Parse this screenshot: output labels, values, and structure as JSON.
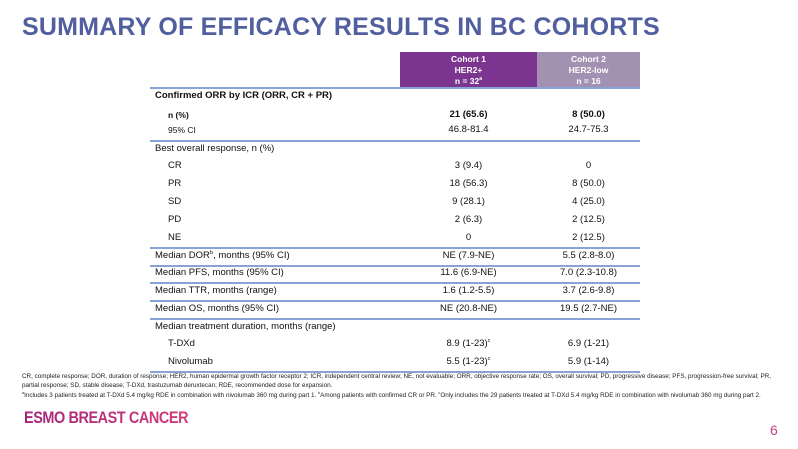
{
  "title": "SUMMARY OF EFFICACY RESULTS IN BC COHORTS",
  "header": {
    "cohort1": [
      "Cohort 1",
      "HER2+",
      "n = 32"
    ],
    "cohort1_sup": "a",
    "cohort2": [
      "Cohort 2",
      "HER2-low",
      "n = 16"
    ],
    "colors": {
      "cohort1": "#7b3490",
      "cohort2": "#a391b2"
    }
  },
  "rows": [
    {
      "label": "Confirmed ORR by ICR (ORR, CR + PR)",
      "v1": "",
      "v2": ""
    },
    {
      "label": "n (%)",
      "v1": "21 (65.6)",
      "v2": "8 (50.0)"
    },
    {
      "label": "95% CI",
      "v1": "46.8-81.4",
      "v2": "24.7-75.3"
    },
    {
      "label": "Best overall response, n (%)",
      "v1": "",
      "v2": ""
    },
    {
      "label": "CR",
      "v1": "3 (9.4)",
      "v2": "0"
    },
    {
      "label": "PR",
      "v1": "18 (56.3)",
      "v2": "8 (50.0)"
    },
    {
      "label": "SD",
      "v1": "9 (28.1)",
      "v2": "4 (25.0)"
    },
    {
      "label": "PD",
      "v1": "2 (6.3)",
      "v2": "2 (12.5)"
    },
    {
      "label": "NE",
      "v1": "0",
      "v2": "2 (12.5)"
    },
    {
      "label": "Median DOR",
      "label_sup": "b",
      "label_rest": ", months (95% CI)",
      "v1": "NE (7.9-NE)",
      "v2": "5.5 (2.8-8.0)"
    },
    {
      "label": "Median PFS, months (95% CI)",
      "v1": "11.6 (6.9-NE)",
      "v2": "7.0 (2.3-10.8)"
    },
    {
      "label": "Median TTR, months (range)",
      "v1": "1.6 (1.2-5.5)",
      "v2": "3.7 (2.6-9.8)"
    },
    {
      "label": "Median OS, months (95% CI)",
      "v1": "NE (20.8-NE)",
      "v2": "19.5 (2.7-NE)"
    },
    {
      "label": "Median treatment duration, months (range)",
      "v1": "",
      "v2": ""
    },
    {
      "label": "T-DXd",
      "v1": "8.9 (1-23)",
      "v1_sup": "c",
      "v2": "6.9 (1-21)"
    },
    {
      "label": "Nivolumab",
      "v1": "5.5 (1-23)",
      "v1_sup": "c",
      "v2": "5.9 (1-14)"
    }
  ],
  "footnotes": {
    "abbrev": "CR, complete response; DOR, duration of response; HER2, human epidermal growth factor receptor 2; ICR, independent central review; NE, not evaluable; ORR, objective response rate; OS, overall survival; PD, progressive disease; PFS, progression-free survival; PR, partial response; SD, stable disease; T-DXd, trastuzumab deruxtecan; RDE, recommended dose for expansion.",
    "a_sup": "a",
    "a": "Includes 3 patients treated at T-DXd 5.4 mg/kg RDE in combination with nivolumab 360 mg during part 1. ",
    "b_sup": "b",
    "b": "Among patients with confirmed CR or PR. ",
    "c_sup": "c",
    "c": "Only includes the 29 patients treated at T-DXd 5.4 mg/kg RDE in combination with nivolumab 360 mg during part 2."
  },
  "logo": "ESMO BREAST CANCER",
  "page_number": "6"
}
